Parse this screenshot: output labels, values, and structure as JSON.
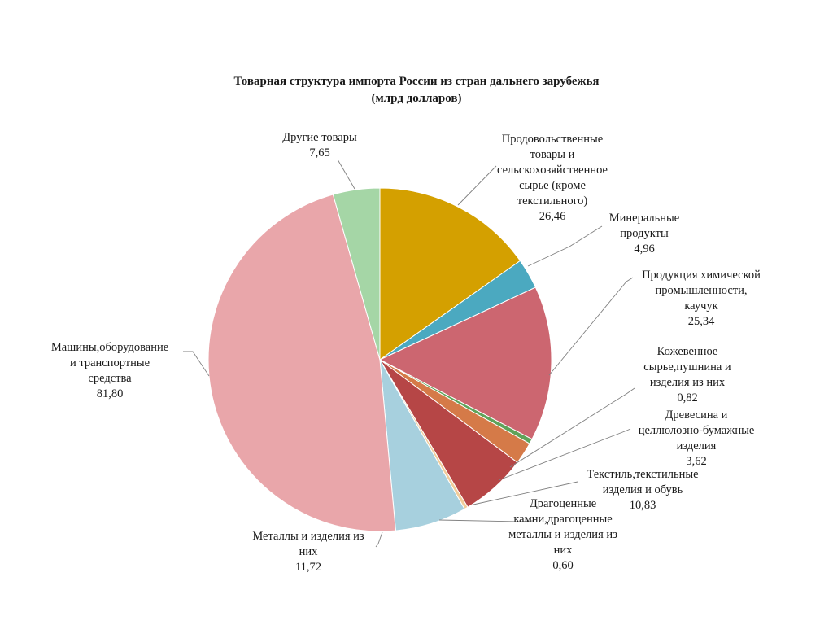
{
  "chart_data": {
    "type": "pie",
    "title": "Товарная структура импорта России из стран дальнего зарубежья",
    "subtitle": "(млрд долларов)",
    "slices": [
      {
        "label": "Продовольственные товары и сельскохозяйственное сырье (кроме текстильного)",
        "value": 26.46,
        "value_label": "26,46",
        "color": "#D4A000"
      },
      {
        "label": "Минеральные продукты",
        "value": 4.96,
        "value_label": "4,96",
        "color": "#4BA9C0"
      },
      {
        "label": "Продукция химической промышленности, каучук",
        "value": 25.34,
        "value_label": "25,34",
        "color": "#CC6670"
      },
      {
        "label": "Кожевенное сырье,пушнина и изделия из них",
        "value": 0.82,
        "value_label": "0,82",
        "color": "#5FA35A"
      },
      {
        "label": "Древесина и целлюлозно-бумажные изделия",
        "value": 3.62,
        "value_label": "3,62",
        "color": "#D57A48"
      },
      {
        "label": "Текстиль,текстильные изделия и обувь",
        "value": 10.83,
        "value_label": "10,83",
        "color": "#B64646"
      },
      {
        "label": "Драгоценные камни,драгоценные металлы и изделия из них",
        "value": 0.6,
        "value_label": "0,60",
        "color": "#F1CC9A"
      },
      {
        "label": "Металлы и изделия из них",
        "value": 11.72,
        "value_label": "11,72",
        "color": "#A7D0DE"
      },
      {
        "label": "Машины,оборудование и транспортные средства",
        "value": 81.8,
        "value_label": "81,80",
        "color": "#E9A6AA"
      },
      {
        "label": "Другие товары",
        "value": 7.65,
        "value_label": "7,65",
        "color": "#A5D6A6"
      }
    ],
    "legend": "none",
    "start": "12 o'clock",
    "direction": "clockwise"
  }
}
